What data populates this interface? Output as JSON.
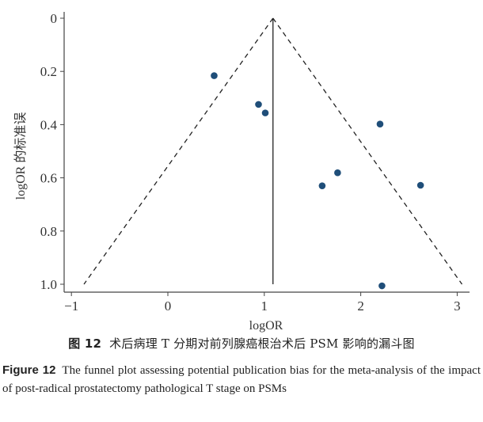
{
  "chart_data": {
    "type": "scatter",
    "subtype": "funnel_plot",
    "title": "",
    "xlabel": "logOR",
    "ylabel": "logOR 的标准误",
    "xlim": [
      -1.1,
      3.15
    ],
    "ylim": [
      1.03,
      -0.02
    ],
    "y_inverted": true,
    "xticks": [
      -1,
      0,
      1,
      2,
      3
    ],
    "xtick_labels": [
      "−1",
      "0",
      "1",
      "2",
      "3"
    ],
    "yticks": [
      0,
      0.2,
      0.4,
      0.6,
      0.8,
      1.0
    ],
    "ytick_labels": [
      "0",
      "0.2",
      "0.4",
      "0.6",
      "0.8",
      "1.0"
    ],
    "grid": false,
    "legend": null,
    "pooled_logOR": 1.09,
    "funnel": {
      "apex": [
        1.09,
        0
      ],
      "lower_left": [
        -0.87,
        1.0
      ],
      "lower_right": [
        3.05,
        1.0
      ],
      "style": "dashed"
    },
    "center_line": {
      "x": 1.09,
      "from_se": 0,
      "to_se": 1.0
    },
    "series": [
      {
        "name": "studies",
        "color": "#1f4e79",
        "points": [
          {
            "x": 0.48,
            "y": 0.216
          },
          {
            "x": 0.94,
            "y": 0.324
          },
          {
            "x": 1.01,
            "y": 0.356
          },
          {
            "x": 2.2,
            "y": 0.398
          },
          {
            "x": 1.76,
            "y": 0.581
          },
          {
            "x": 1.6,
            "y": 0.63
          },
          {
            "x": 2.62,
            "y": 0.628
          },
          {
            "x": 2.22,
            "y": 1.006
          }
        ]
      }
    ]
  },
  "caption": {
    "cn_label": "图 12",
    "cn_text": "术后病理 T 分期对前列腺癌根治术后 PSM 影响的漏斗图",
    "en_label": "Figure 12",
    "en_text": "The funnel plot assessing potential publication bias for the meta-analysis of the impact of post-radical prostatectomy pathological T stage on PSMs"
  }
}
